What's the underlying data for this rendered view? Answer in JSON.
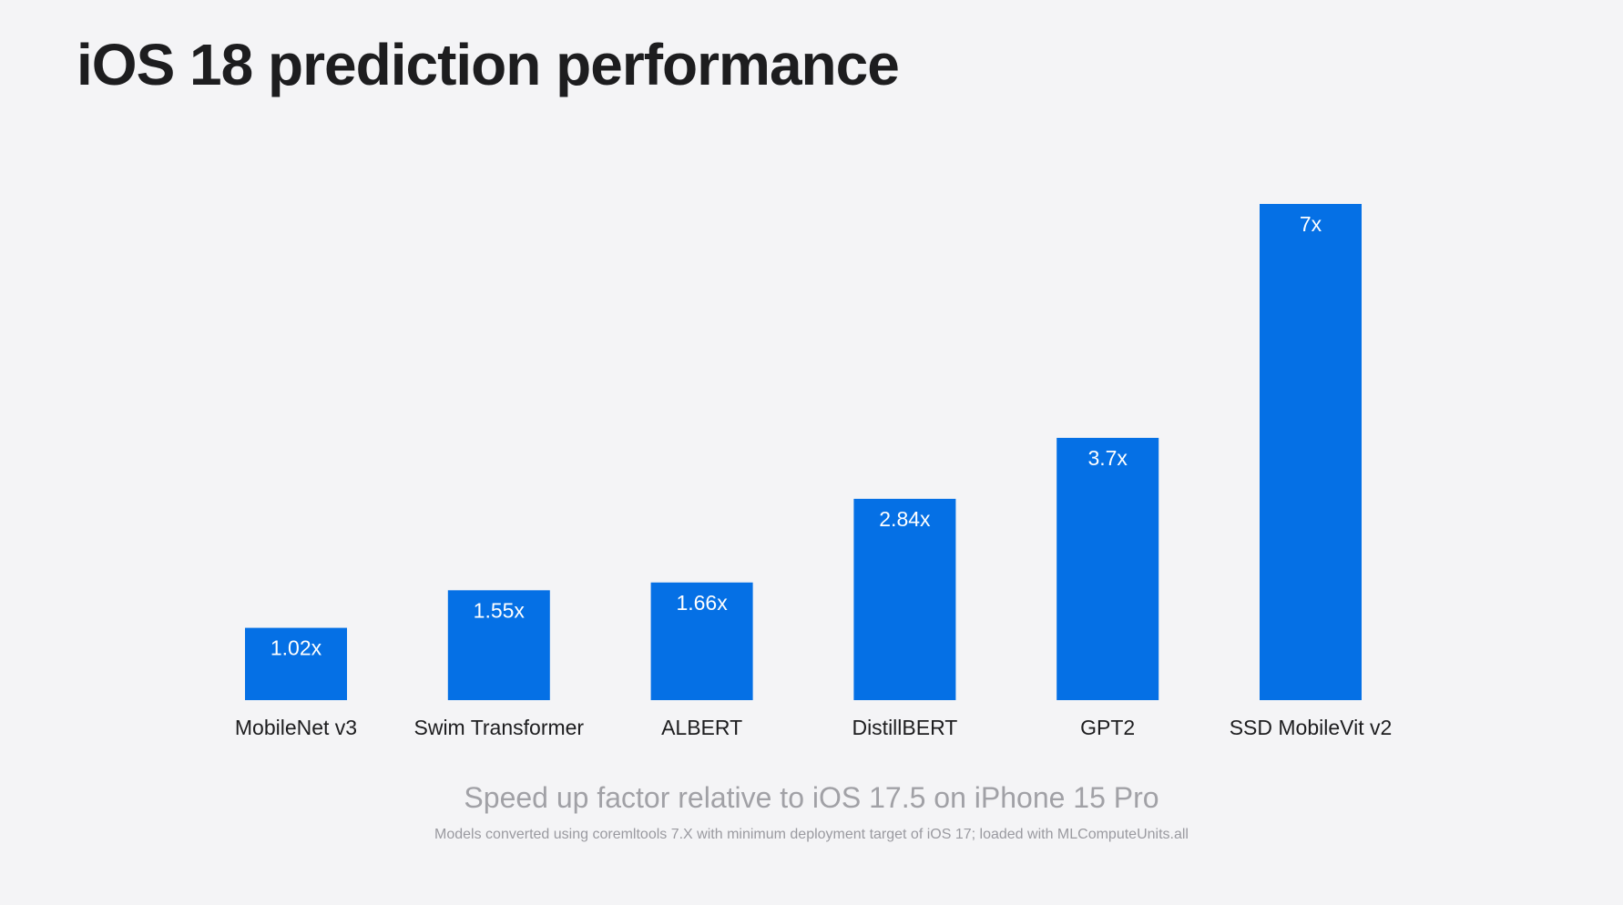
{
  "title": "iOS 18 prediction performance",
  "subtitle": "Speed up factor relative to iOS 17.5 on iPhone 15 Pro",
  "footnote": "Models converted using coremltools 7.X with minimum deployment target of iOS 17; loaded with MLComputeUnits.all",
  "colors": {
    "bar": "#0570e5",
    "background": "#f4f4f6"
  },
  "chart_data": {
    "type": "bar",
    "categories": [
      "MobileNet v3",
      "Swim Transformer",
      "ALBERT",
      "DistillBERT",
      "GPT2",
      "SSD MobileVit v2"
    ],
    "values": [
      1.02,
      1.55,
      1.66,
      2.84,
      3.7,
      7
    ],
    "data_labels": [
      "1.02x",
      "1.55x",
      "1.66x",
      "2.84x",
      "3.7x",
      "7x"
    ],
    "title": "iOS 18 prediction performance",
    "xlabel": "Speed up factor relative to iOS 17.5 on iPhone 15 Pro",
    "ylabel": "",
    "ylim": [
      0,
      7
    ],
    "grid": false
  }
}
